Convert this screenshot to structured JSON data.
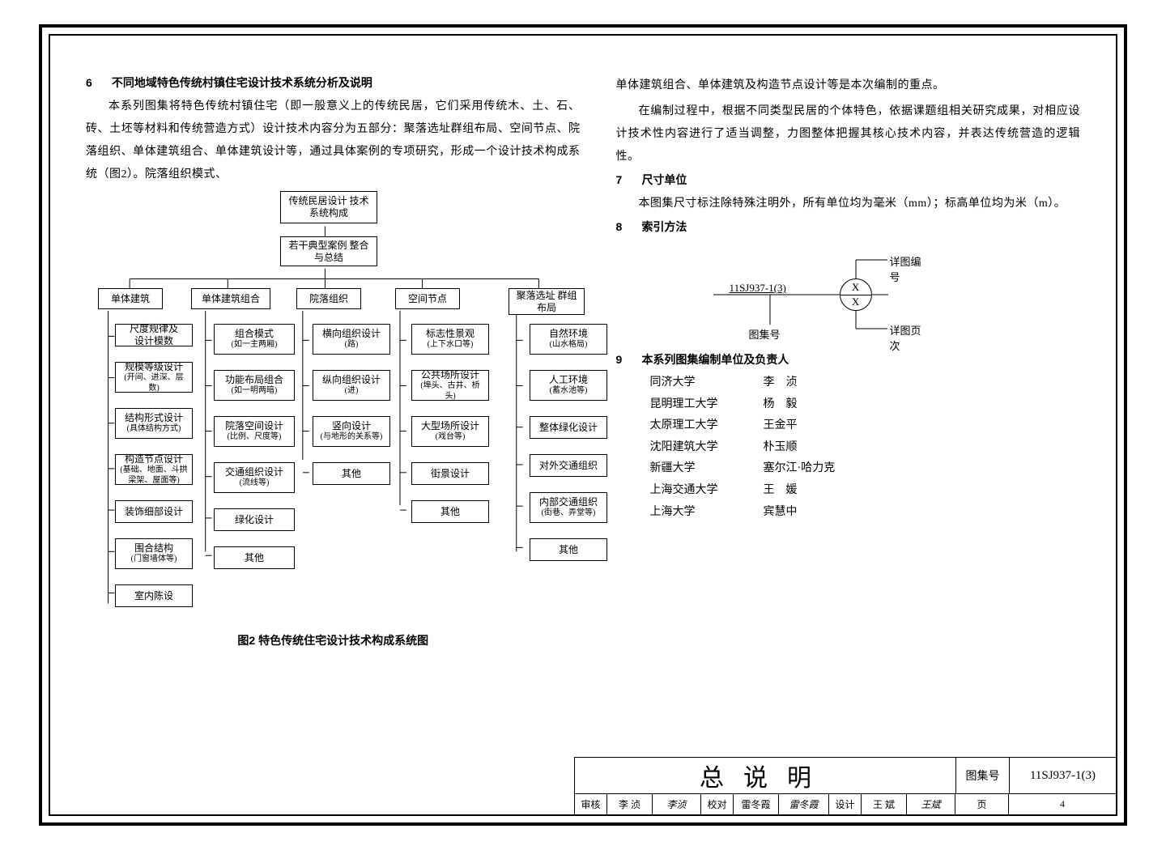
{
  "section6": {
    "num": "6",
    "title": "不同地域特色传统村镇住宅设计技术系统分析及说明",
    "para": "本系列图集将特色传统村镇住宅（即一般意义上的传统民居，它们采用传统木、土、石、砖、土坯等材料和传统营造方式）设计技术内容分为五部分：聚落选址群组布局、空间节点、院落组织、单体建筑组合、单体建筑设计等，通过具体案例的专项研究，形成一个设计技术构成系统（图2）。院落组织模式、"
  },
  "col2_top": {
    "p1": "单体建筑组合、单体建筑及构造节点设计等是本次编制的重点。",
    "p2": "在编制过程中，根据不同类型民居的个体特色，依据课题组相关研究成果，对相应设计技术性内容进行了适当调整，力图整体把握其核心技术内容，并表达传统营造的逻辑性。"
  },
  "section7": {
    "num": "7",
    "title": "尺寸单位",
    "para": "本图集尺寸标注除特殊注明外，所有单位均为毫米（mm）；标高单位均为米（m）。"
  },
  "section8": {
    "num": "8",
    "title": "索引方法"
  },
  "index_diagram": {
    "code": "11SJ937-1(3)",
    "lbl_top": "详图编号",
    "lbl_bl": "图集号",
    "lbl_br": "详图页次",
    "x": "X"
  },
  "section9": {
    "num": "9",
    "title": "本系列图集编制单位及负责人",
    "credits": [
      {
        "org": "同济大学",
        "person": "李　浈"
      },
      {
        "org": "昆明理工大学",
        "person": "杨　毅"
      },
      {
        "org": "太原理工大学",
        "person": "王金平"
      },
      {
        "org": "沈阳建筑大学",
        "person": "朴玉顺"
      },
      {
        "org": "新疆大学",
        "person": "塞尔江·哈力克"
      },
      {
        "org": "上海交通大学",
        "person": "王　媛"
      },
      {
        "org": "上海大学",
        "person": "宾慧中"
      }
    ]
  },
  "flow": {
    "caption": "图2  特色传统住宅设计技术构成系统图",
    "top1": "传统民居设计\n技术系统构成",
    "top2": "若干典型案例\n整合与总结",
    "heads": [
      "单体建筑",
      "单体建筑组合",
      "院落组织",
      "空间节点",
      "聚落选址\n群组布局"
    ],
    "c1": [
      {
        "t": "尺度规律及\n设计模数"
      },
      {
        "t": "规模等级设计",
        "s": "(开间、进深、层数)"
      },
      {
        "t": "结构形式设计",
        "s": "(具体结构方式)"
      },
      {
        "t": "构造节点设计",
        "s": "(基础、地面、斗拱\n梁架、屋面等)"
      },
      {
        "t": "装饰细部设计"
      },
      {
        "t": "围合结构",
        "s": "(门窗墙体等)"
      },
      {
        "t": "室内陈设"
      }
    ],
    "c2": [
      {
        "t": "组合模式",
        "s": "(如一主两厢)"
      },
      {
        "t": "功能布局组合",
        "s": "(如一明两暗)"
      },
      {
        "t": "院落空间设计",
        "s": "(比例、尺度等)"
      },
      {
        "t": "交通组织设计",
        "s": "(流线等)"
      },
      {
        "t": "绿化设计"
      },
      {
        "t": "其他"
      }
    ],
    "c3": [
      {
        "t": "横向组织设计",
        "s": "(路)"
      },
      {
        "t": "纵向组织设计",
        "s": "(进)"
      },
      {
        "t": "竖向设计",
        "s": "(与地形的关系等)"
      },
      {
        "t": "其他"
      }
    ],
    "c4": [
      {
        "t": "标志性景观",
        "s": "(上下水口等)"
      },
      {
        "t": "公共场所设计",
        "s": "(埠头、古井、桥头)"
      },
      {
        "t": "大型场所设计",
        "s": "(戏台等)"
      },
      {
        "t": "街景设计"
      },
      {
        "t": "其他"
      }
    ],
    "c5": [
      {
        "t": "自然环境",
        "s": "(山水格局)"
      },
      {
        "t": "人工环境",
        "s": "(蓄水池等)"
      },
      {
        "t": "整体绿化设计"
      },
      {
        "t": "对外交通组织"
      },
      {
        "t": "内部交通组织",
        "s": "(街巷、弄堂等)"
      },
      {
        "t": "其他"
      }
    ]
  },
  "titleblock": {
    "title": "总说明",
    "code_label": "图集号",
    "code": "11SJ937-1(3)",
    "r2": {
      "shenhe": "审核",
      "shenhe_v": "李  浈",
      "shenhe_sig": "李浈",
      "jiaodui": "校对",
      "jiaodui_v": "雷冬霞",
      "jiaodui_sig": "雷冬霞",
      "sheji": "设计",
      "sheji_v": "王  斌",
      "sheji_sig": "王斌",
      "page_label": "页",
      "page": "4"
    }
  },
  "colors": {
    "line": "#000000",
    "bg": "#ffffff"
  }
}
